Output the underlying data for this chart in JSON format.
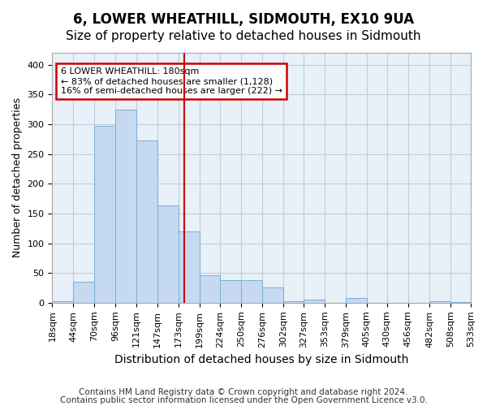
{
  "title": "6, LOWER WHEATHILL, SIDMOUTH, EX10 9UA",
  "subtitle": "Size of property relative to detached houses in Sidmouth",
  "xlabel": "Distribution of detached houses by size in Sidmouth",
  "ylabel": "Number of detached properties",
  "footer_line1": "Contains HM Land Registry data © Crown copyright and database right 2024.",
  "footer_line2": "Contains public sector information licensed under the Open Government Licence v3.0.",
  "annotation_line1": "6 LOWER WHEATHILL: 180sqm",
  "annotation_line2": "← 83% of detached houses are smaller (1,128)",
  "annotation_line3": "16% of semi-detached houses are larger (222) →",
  "property_size": 180,
  "bin_edges": [
    18,
    44,
    70,
    96,
    121,
    147,
    173,
    199,
    224,
    250,
    276,
    302,
    327,
    353,
    379,
    405,
    430,
    456,
    482,
    508,
    533
  ],
  "bin_labels": [
    "18sqm",
    "44sqm",
    "70sqm",
    "96sqm",
    "121sqm",
    "147sqm",
    "173sqm",
    "199sqm",
    "224sqm",
    "250sqm",
    "276sqm",
    "302sqm",
    "327sqm",
    "353sqm",
    "379sqm",
    "405sqm",
    "430sqm",
    "456sqm",
    "482sqm",
    "508sqm",
    "533sqm"
  ],
  "bar_heights": [
    2,
    35,
    297,
    325,
    273,
    163,
    120,
    46,
    38,
    38,
    25,
    3,
    5,
    0,
    8,
    0,
    0,
    0,
    2,
    1
  ],
  "bar_color": "#c5d9f0",
  "bar_edge_color": "#7bafd4",
  "vline_color": "#cc0000",
  "vline_x": 180,
  "ylim": [
    0,
    420
  ],
  "yticks": [
    0,
    50,
    100,
    150,
    200,
    250,
    300,
    350,
    400
  ],
  "grid_color": "#c0cce0",
  "background_color": "#e8f0f8",
  "annotation_box_color": "#cc0000",
  "title_fontsize": 12,
  "subtitle_fontsize": 11,
  "xlabel_fontsize": 10,
  "ylabel_fontsize": 9,
  "tick_fontsize": 8,
  "footer_fontsize": 7.5
}
